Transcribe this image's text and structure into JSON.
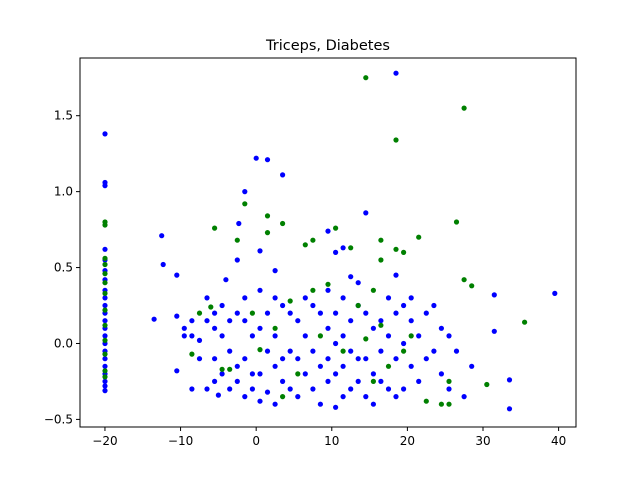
{
  "chart_data": {
    "type": "scatter",
    "title": "Triceps, Diabetes",
    "xlabel": "",
    "ylabel": "",
    "xlim": [
      -23.3,
      42.3
    ],
    "ylim": [
      -0.55,
      1.88
    ],
    "x_ticks": [
      -20,
      -10,
      0,
      10,
      20,
      30,
      40
    ],
    "y_ticks": [
      -0.5,
      0.0,
      0.5,
      1.0,
      1.5
    ],
    "y_tick_labels": [
      "−0.5",
      "0.0",
      "0.5",
      "1.0",
      "1.5"
    ],
    "grid": false,
    "series": [
      {
        "color": "#0000ff",
        "points": [
          [
            -20,
            1.38
          ],
          [
            -20,
            1.06
          ],
          [
            -20,
            1.04
          ],
          [
            -20,
            0.62
          ],
          [
            -20,
            0.55
          ],
          [
            -20,
            0.48
          ],
          [
            -20,
            0.42
          ],
          [
            -20,
            0.35
          ],
          [
            -20,
            0.3
          ],
          [
            -20,
            0.25
          ],
          [
            -20,
            0.2
          ],
          [
            -20,
            0.15
          ],
          [
            -20,
            0.1
          ],
          [
            -20,
            0.05
          ],
          [
            -20,
            0.0
          ],
          [
            -20,
            -0.05
          ],
          [
            -20,
            -0.1
          ],
          [
            -20,
            -0.15
          ],
          [
            -20,
            -0.2
          ],
          [
            -20,
            -0.25
          ],
          [
            -20,
            -0.28
          ],
          [
            -20,
            -0.31
          ],
          [
            -13.5,
            0.16
          ],
          [
            -12.5,
            0.71
          ],
          [
            -12.3,
            0.52
          ],
          [
            -10.5,
            0.45
          ],
          [
            -10.5,
            0.18
          ],
          [
            -10.5,
            -0.18
          ],
          [
            -9.5,
            0.1
          ],
          [
            -9.5,
            0.05
          ],
          [
            -8.5,
            0.15
          ],
          [
            -8.5,
            0.05
          ],
          [
            -8.5,
            -0.3
          ],
          [
            -7.5,
            0.02
          ],
          [
            -7.5,
            -0.1
          ],
          [
            -6.5,
            0.3
          ],
          [
            -6.5,
            0.15
          ],
          [
            -6.5,
            -0.3
          ],
          [
            -5.5,
            0.2
          ],
          [
            -5.5,
            0.1
          ],
          [
            -5.5,
            -0.1
          ],
          [
            -5.5,
            -0.25
          ],
          [
            -5.0,
            -0.34
          ],
          [
            -4.5,
            0.25
          ],
          [
            -4.5,
            0.05
          ],
          [
            -4.5,
            -0.2
          ],
          [
            -4.0,
            0.42
          ],
          [
            -3.5,
            0.15
          ],
          [
            -3.5,
            -0.05
          ],
          [
            -3.5,
            -0.3
          ],
          [
            -2.5,
            0.55
          ],
          [
            -2.5,
            0.2
          ],
          [
            -2.5,
            -0.15
          ],
          [
            -2.5,
            -0.25
          ],
          [
            -2.3,
            0.79
          ],
          [
            -1.5,
            1.0
          ],
          [
            -1.5,
            0.3
          ],
          [
            -1.5,
            0.15
          ],
          [
            -1.5,
            -0.1
          ],
          [
            -1.5,
            -0.35
          ],
          [
            -0.5,
            0.05
          ],
          [
            -0.5,
            -0.2
          ],
          [
            -0.5,
            -0.3
          ],
          [
            0,
            1.22
          ],
          [
            0.5,
            0.61
          ],
          [
            0.5,
            0.35
          ],
          [
            0.5,
            0.1
          ],
          [
            0.5,
            -0.2
          ],
          [
            0.5,
            -0.38
          ],
          [
            1.5,
            1.21
          ],
          [
            1.5,
            0.2
          ],
          [
            1.5,
            -0.05
          ],
          [
            1.5,
            -0.32
          ],
          [
            2.5,
            0.48
          ],
          [
            2.5,
            0.3
          ],
          [
            2.5,
            0.05
          ],
          [
            2.5,
            -0.15
          ],
          [
            2.5,
            -0.4
          ],
          [
            3.5,
            1.11
          ],
          [
            3.5,
            0.25
          ],
          [
            3.5,
            -0.1
          ],
          [
            3.5,
            -0.25
          ],
          [
            4.5,
            0.2
          ],
          [
            4.5,
            -0.05
          ],
          [
            4.5,
            -0.3
          ],
          [
            5.5,
            0.15
          ],
          [
            5.5,
            -0.1
          ],
          [
            5.5,
            -0.35
          ],
          [
            6.5,
            0.3
          ],
          [
            6.5,
            0.05
          ],
          [
            6.5,
            -0.2
          ],
          [
            7.5,
            0.25
          ],
          [
            7.5,
            -0.05
          ],
          [
            7.5,
            -0.3
          ],
          [
            8.5,
            0.2
          ],
          [
            8.5,
            -0.15
          ],
          [
            8.5,
            -0.4
          ],
          [
            9.5,
            0.74
          ],
          [
            9.5,
            0.35
          ],
          [
            9.5,
            0.1
          ],
          [
            9.5,
            -0.1
          ],
          [
            9.5,
            -0.25
          ],
          [
            10.5,
            0.6
          ],
          [
            10.5,
            0.2
          ],
          [
            10.5,
            0.0
          ],
          [
            10.5,
            -0.2
          ],
          [
            10.5,
            -0.42
          ],
          [
            11.5,
            0.63
          ],
          [
            11.5,
            0.3
          ],
          [
            11.5,
            0.05
          ],
          [
            11.5,
            -0.15
          ],
          [
            11.5,
            -0.35
          ],
          [
            12.5,
            0.44
          ],
          [
            12.5,
            0.15
          ],
          [
            12.5,
            -0.05
          ],
          [
            12.5,
            -0.3
          ],
          [
            13.5,
            0.4
          ],
          [
            13.5,
            0.25
          ],
          [
            13.5,
            -0.1
          ],
          [
            13.5,
            -0.25
          ],
          [
            14.5,
            0.86
          ],
          [
            14.5,
            0.2
          ],
          [
            14.5,
            -0.1
          ],
          [
            14.5,
            -0.35
          ],
          [
            15.5,
            0.1
          ],
          [
            15.5,
            -0.2
          ],
          [
            15.5,
            -0.4
          ],
          [
            16.5,
            0.15
          ],
          [
            16.5,
            -0.05
          ],
          [
            16.5,
            -0.25
          ],
          [
            17.5,
            0.3
          ],
          [
            17.5,
            0.05
          ],
          [
            17.5,
            -0.3
          ],
          [
            18.5,
            1.78
          ],
          [
            18.5,
            0.45
          ],
          [
            18.5,
            0.2
          ],
          [
            18.5,
            -0.1
          ],
          [
            18.5,
            -0.35
          ],
          [
            19.5,
            0.25
          ],
          [
            19.5,
            0.0
          ],
          [
            19.5,
            -0.3
          ],
          [
            20.5,
            0.3
          ],
          [
            20.5,
            0.15
          ],
          [
            20.5,
            -0.15
          ],
          [
            21.5,
            0.05
          ],
          [
            21.5,
            -0.25
          ],
          [
            22.5,
            0.2
          ],
          [
            22.5,
            -0.1
          ],
          [
            23.5,
            0.25
          ],
          [
            23.5,
            -0.05
          ],
          [
            24.5,
            0.1
          ],
          [
            24.5,
            -0.2
          ],
          [
            25.5,
            0.05
          ],
          [
            25.5,
            -0.3
          ],
          [
            26.5,
            -0.05
          ],
          [
            27.5,
            -0.35
          ],
          [
            28.5,
            -0.15
          ],
          [
            31.5,
            0.32
          ],
          [
            31.5,
            0.08
          ],
          [
            33.5,
            -0.24
          ],
          [
            33.5,
            -0.43
          ],
          [
            39.5,
            0.33
          ]
        ]
      },
      {
        "color": "#008000",
        "points": [
          [
            -20,
            0.8
          ],
          [
            -20,
            0.78
          ],
          [
            -20,
            0.56
          ],
          [
            -20,
            0.52
          ],
          [
            -20,
            0.46
          ],
          [
            -20,
            0.4
          ],
          [
            -20,
            0.33
          ],
          [
            -20,
            0.22
          ],
          [
            -20,
            0.12
          ],
          [
            -20,
            0.02
          ],
          [
            -20,
            -0.07
          ],
          [
            -20,
            -0.18
          ],
          [
            -20,
            -0.22
          ],
          [
            -8.5,
            -0.07
          ],
          [
            -7.5,
            0.2
          ],
          [
            -6.0,
            0.24
          ],
          [
            -5.5,
            0.76
          ],
          [
            -4.5,
            -0.17
          ],
          [
            -3.5,
            -0.17
          ],
          [
            -2.5,
            0.68
          ],
          [
            -1.5,
            0.92
          ],
          [
            -0.5,
            0.2
          ],
          [
            0.5,
            -0.04
          ],
          [
            1.5,
            0.84
          ],
          [
            1.5,
            0.73
          ],
          [
            2.5,
            0.1
          ],
          [
            3.5,
            0.79
          ],
          [
            3.5,
            -0.35
          ],
          [
            4.5,
            0.28
          ],
          [
            5.5,
            -0.2
          ],
          [
            6.5,
            0.65
          ],
          [
            7.5,
            0.68
          ],
          [
            7.5,
            0.35
          ],
          [
            8.5,
            0.05
          ],
          [
            9.5,
            0.39
          ],
          [
            10.5,
            0.76
          ],
          [
            11.5,
            -0.05
          ],
          [
            12.5,
            0.63
          ],
          [
            13.5,
            0.25
          ],
          [
            14.5,
            0.03
          ],
          [
            14.5,
            1.75
          ],
          [
            15.5,
            0.35
          ],
          [
            15.5,
            -0.25
          ],
          [
            16.5,
            0.68
          ],
          [
            16.5,
            0.12
          ],
          [
            16.5,
            0.55
          ],
          [
            17.5,
            -0.15
          ],
          [
            18.5,
            1.34
          ],
          [
            18.5,
            0.62
          ],
          [
            19.5,
            0.6
          ],
          [
            19.5,
            -0.05
          ],
          [
            20.5,
            0.05
          ],
          [
            21.5,
            0.7
          ],
          [
            22.5,
            -0.38
          ],
          [
            24.5,
            -0.4
          ],
          [
            25.5,
            -0.25
          ],
          [
            25.5,
            -0.4
          ],
          [
            26.5,
            0.8
          ],
          [
            27.5,
            1.55
          ],
          [
            27.5,
            0.42
          ],
          [
            28.5,
            0.38
          ],
          [
            30.5,
            -0.27
          ],
          [
            35.5,
            0.14
          ]
        ]
      }
    ]
  }
}
